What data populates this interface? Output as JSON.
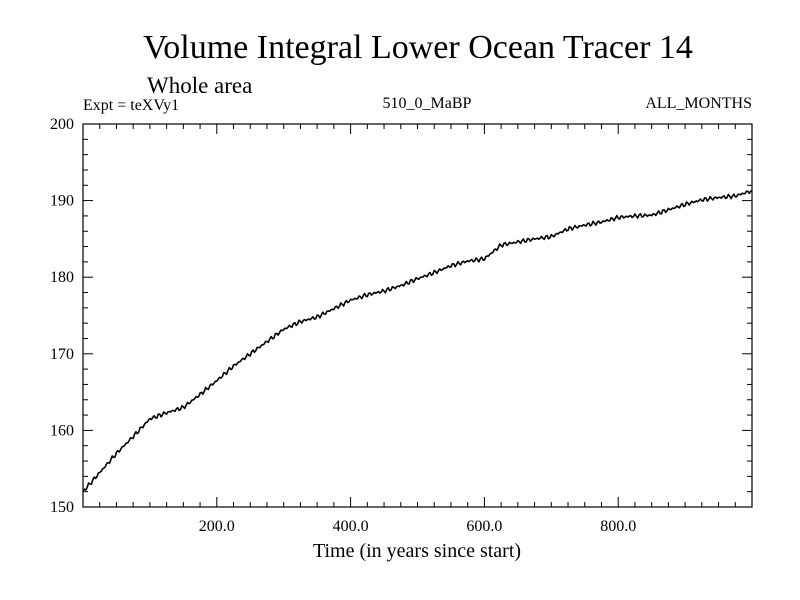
{
  "chart_data": {
    "type": "line",
    "title": "Volume Integral Lower Ocean Tracer 14",
    "subtitle": "Whole area",
    "experiment_label": "Expt = teXVy1",
    "run_label": "510_0_MaBP",
    "months_label": "ALL_MONTHS",
    "xlabel": "Time (in years since start)",
    "ylabel": "",
    "xlim": [
      0,
      1000
    ],
    "ylim": [
      150,
      200
    ],
    "x_ticks": [
      200,
      400,
      600,
      800
    ],
    "x_tick_labels": [
      "200.0",
      "400.0",
      "600.0",
      "800.0"
    ],
    "y_ticks": [
      150,
      160,
      170,
      180,
      190,
      200
    ],
    "y_tick_labels": [
      "150",
      "160",
      "170",
      "180",
      "190",
      "200"
    ],
    "grid": false,
    "series": [
      {
        "name": "Tracer 14",
        "color": "#000000",
        "x": [
          0,
          25,
          50,
          75,
          100,
          125,
          150,
          175,
          200,
          225,
          250,
          275,
          300,
          325,
          350,
          375,
          400,
          425,
          450,
          475,
          500,
          525,
          550,
          575,
          600,
          625,
          650,
          675,
          700,
          725,
          750,
          775,
          800,
          825,
          850,
          875,
          900,
          925,
          950,
          975,
          1000
        ],
        "y": [
          152.0,
          154.5,
          157.0,
          159.2,
          161.5,
          162.3,
          163.0,
          164.7,
          166.5,
          168.4,
          170.0,
          171.6,
          173.2,
          174.2,
          174.8,
          175.9,
          177.0,
          177.7,
          178.2,
          178.9,
          179.8,
          180.6,
          181.5,
          182.1,
          182.4,
          184.2,
          184.6,
          185.0,
          185.3,
          186.3,
          186.8,
          187.2,
          187.8,
          188.0,
          188.1,
          188.8,
          189.5,
          190.1,
          190.4,
          190.6,
          191.3
        ]
      }
    ]
  }
}
